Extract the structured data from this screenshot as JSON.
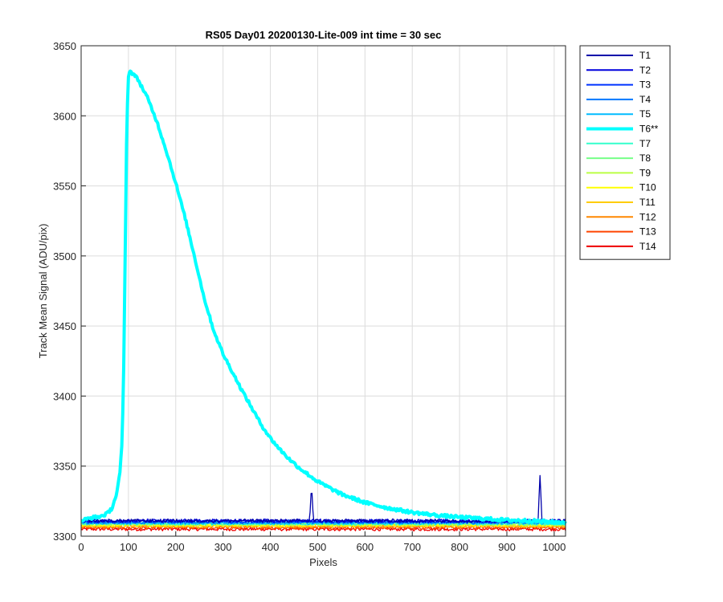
{
  "chart_data": {
    "type": "line",
    "title": "RS05 Day01 20200130-Lite-009 int time = 30 sec",
    "xlabel": "Pixels",
    "ylabel": "Track Mean Signal (ADU/pix)",
    "xlim": [
      0,
      1024
    ],
    "ylim": [
      3300,
      3650
    ],
    "xticks": [
      0,
      100,
      200,
      300,
      400,
      500,
      600,
      700,
      800,
      900,
      1000
    ],
    "yticks": [
      3300,
      3350,
      3400,
      3450,
      3500,
      3550,
      3600,
      3650
    ],
    "grid": true,
    "legend_position": "outside-top-right",
    "series": [
      {
        "name": "T1",
        "color": "#0000aa",
        "baseline": 3311,
        "spikes": [
          {
            "x": 487,
            "y": 3337
          },
          {
            "x": 970,
            "y": 3343
          }
        ]
      },
      {
        "name": "T2",
        "color": "#0000dd",
        "baseline": 3311
      },
      {
        "name": "T3",
        "color": "#0033ff",
        "baseline": 3310.5
      },
      {
        "name": "T4",
        "color": "#0077ff",
        "baseline": 3310
      },
      {
        "name": "T5",
        "color": "#00bbff",
        "baseline": 3309.5
      },
      {
        "name": "T6**",
        "color": "#00ffff",
        "highlighted": true,
        "points": [
          [
            0,
            3311
          ],
          [
            20,
            3313
          ],
          [
            40,
            3314
          ],
          [
            55,
            3316
          ],
          [
            65,
            3320
          ],
          [
            75,
            3330
          ],
          [
            82,
            3345
          ],
          [
            87,
            3370
          ],
          [
            90,
            3420
          ],
          [
            93,
            3500
          ],
          [
            96,
            3580
          ],
          [
            99,
            3625
          ],
          [
            102,
            3632
          ],
          [
            110,
            3630
          ],
          [
            120,
            3626
          ],
          [
            140,
            3613
          ],
          [
            160,
            3596
          ],
          [
            180,
            3575
          ],
          [
            200,
            3552
          ],
          [
            220,
            3527
          ],
          [
            240,
            3499
          ],
          [
            260,
            3470
          ],
          [
            280,
            3447
          ],
          [
            300,
            3430
          ],
          [
            320,
            3417
          ],
          [
            340,
            3404
          ],
          [
            360,
            3392
          ],
          [
            380,
            3380
          ],
          [
            400,
            3370
          ],
          [
            420,
            3362
          ],
          [
            440,
            3355
          ],
          [
            460,
            3349
          ],
          [
            480,
            3344
          ],
          [
            500,
            3339
          ],
          [
            550,
            3330
          ],
          [
            600,
            3324
          ],
          [
            650,
            3320
          ],
          [
            700,
            3317
          ],
          [
            750,
            3315
          ],
          [
            800,
            3313.5
          ],
          [
            850,
            3312.5
          ],
          [
            900,
            3311.5
          ],
          [
            950,
            3311
          ],
          [
            1000,
            3310
          ],
          [
            1024,
            3310
          ]
        ]
      },
      {
        "name": "T7",
        "color": "#33ffcc",
        "baseline": 3309
      },
      {
        "name": "T8",
        "color": "#77ff88",
        "baseline": 3309
      },
      {
        "name": "T9",
        "color": "#bbff44",
        "baseline": 3308.5
      },
      {
        "name": "T10",
        "color": "#ffff00",
        "baseline": 3308
      },
      {
        "name": "T11",
        "color": "#ffcc00",
        "baseline": 3307.5
      },
      {
        "name": "T12",
        "color": "#ff8800",
        "baseline": 3307
      },
      {
        "name": "T13",
        "color": "#ff4400",
        "baseline": 3306
      },
      {
        "name": "T14",
        "color": "#ee0000",
        "baseline": 3305
      }
    ]
  }
}
